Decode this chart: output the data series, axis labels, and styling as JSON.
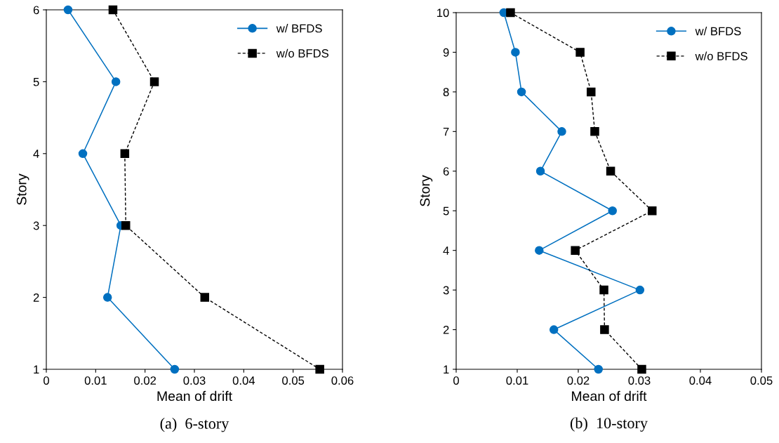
{
  "chart_data": [
    {
      "type": "line",
      "orientation": "horizontal",
      "title": "(a)  6-story",
      "xlabel": "Mean of drift",
      "ylabel": "Story",
      "categories": [
        "6",
        "5",
        "4",
        "3",
        "2",
        "1"
      ],
      "xlim": [
        0,
        0.06
      ],
      "xticks": [
        {
          "value": 0,
          "label": "0"
        },
        0.01,
        0.02,
        0.03,
        0.04,
        0.05,
        0.06
      ],
      "grid": false,
      "legend": "top right",
      "series": [
        {
          "name": "w/ BFDS",
          "color": "#0070c0",
          "marker": "circle",
          "line_style": "solid",
          "values": [
            0.0044,
            0.0141,
            0.0074,
            0.0151,
            0.0124,
            0.026
          ]
        },
        {
          "name": "w/o BFDS",
          "color": "#000000",
          "marker": "square",
          "line_style": "dashed",
          "values": [
            0.0135,
            0.0219,
            0.0159,
            0.0161,
            0.0321,
            0.0554
          ]
        }
      ]
    },
    {
      "type": "line",
      "orientation": "horizontal",
      "title": "(b)  10-story",
      "xlabel": "Mean of drift",
      "ylabel": "Story",
      "categories": [
        "10",
        "9",
        "8",
        "7",
        "6",
        "5",
        "4",
        "3",
        "2",
        "1"
      ],
      "xlim": [
        0,
        0.05
      ],
      "xticks": [
        {
          "value": 0,
          "label": "0"
        },
        0.01,
        0.02,
        0.03,
        0.04,
        0.05
      ],
      "grid": false,
      "legend": "top right",
      "series": [
        {
          "name": "w/ BFDS",
          "color": "#0070c0",
          "marker": "circle",
          "line_style": "solid",
          "values": [
            0.0078,
            0.0097,
            0.0107,
            0.0173,
            0.0138,
            0.0256,
            0.0136,
            0.0301,
            0.016,
            0.0233
          ]
        },
        {
          "name": "w/o BFDS",
          "color": "#000000",
          "marker": "square",
          "line_style": "dashed",
          "values": [
            0.0089,
            0.0203,
            0.0221,
            0.0227,
            0.0253,
            0.0321,
            0.0195,
            0.0242,
            0.0243,
            0.0304
          ]
        }
      ]
    }
  ]
}
